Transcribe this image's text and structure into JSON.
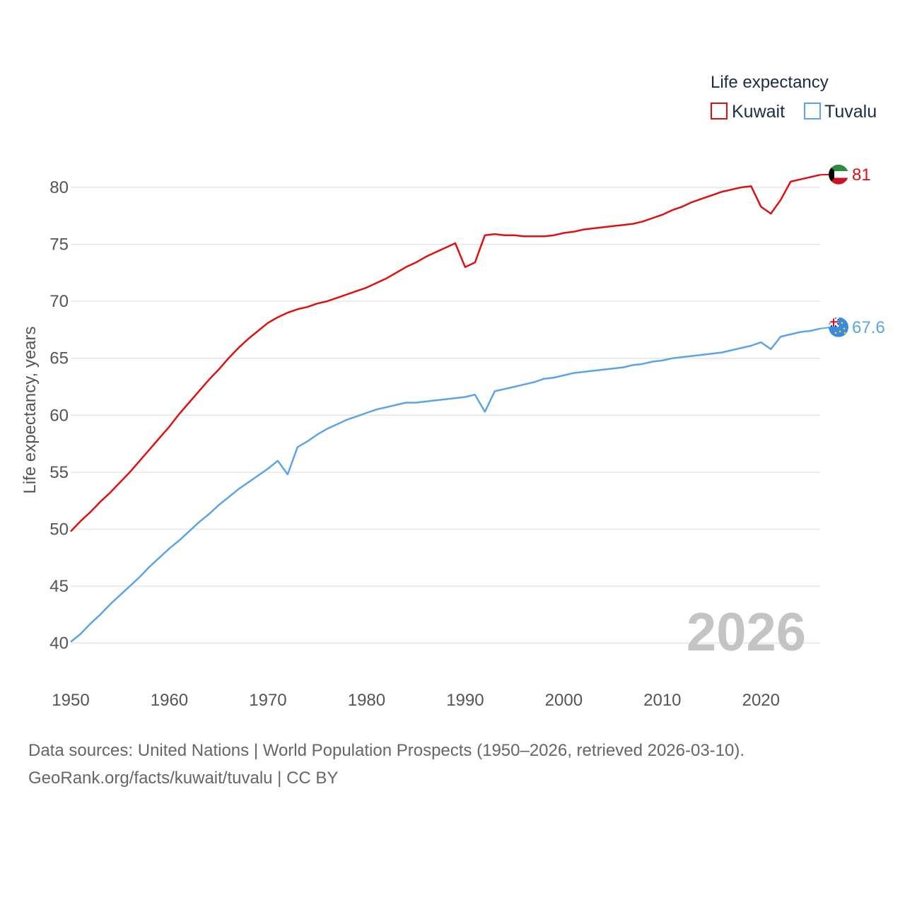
{
  "legend": {
    "title": "Life expectancy"
  },
  "year_label": "2026",
  "source": {
    "line1": "Data sources: United Nations | World Population Prospects (1950–2026, retrieved 2026-03-10).",
    "line2": "GeoRank.org/facts/kuwait/tuvalu | CC BY"
  },
  "colors": {
    "kuwait": "#e01010",
    "tuvalu": "#5ca4e8",
    "grid": "#e6e6e6"
  },
  "chart_data": {
    "type": "line",
    "title": "",
    "xlabel": "",
    "ylabel": "Life expectancy, years",
    "xlim": [
      1950,
      2026
    ],
    "ylim": [
      40,
      82
    ],
    "yticks": [
      40,
      45,
      50,
      55,
      60,
      65,
      70,
      75,
      80
    ],
    "xticks": [
      1950,
      1960,
      1970,
      1980,
      1990,
      2000,
      2010,
      2020
    ],
    "grid": true,
    "legend_position": "top-right",
    "series": [
      {
        "name": "Kuwait",
        "color": "#e01010",
        "end_label": "81",
        "flag": "kuwait-flag",
        "x": [
          1950,
          1951,
          1952,
          1953,
          1954,
          1955,
          1956,
          1957,
          1958,
          1959,
          1960,
          1961,
          1962,
          1963,
          1964,
          1965,
          1966,
          1967,
          1968,
          1969,
          1970,
          1971,
          1972,
          1973,
          1974,
          1975,
          1976,
          1977,
          1978,
          1979,
          1980,
          1981,
          1982,
          1983,
          1984,
          1985,
          1986,
          1987,
          1988,
          1989,
          1990,
          1991,
          1992,
          1993,
          1994,
          1995,
          1996,
          1997,
          1998,
          1999,
          2000,
          2001,
          2002,
          2003,
          2004,
          2005,
          2006,
          2007,
          2008,
          2009,
          2010,
          2011,
          2012,
          2013,
          2014,
          2015,
          2016,
          2017,
          2018,
          2019,
          2020,
          2021,
          2022,
          2023,
          2024,
          2025,
          2026
        ],
        "values": [
          49.8,
          50.7,
          51.5,
          52.4,
          53.2,
          54.1,
          55.0,
          56.0,
          57.0,
          58.0,
          59.0,
          60.1,
          61.1,
          62.1,
          63.1,
          64.0,
          65.0,
          65.9,
          66.7,
          67.4,
          68.1,
          68.6,
          69.0,
          69.3,
          69.5,
          69.8,
          70.0,
          70.3,
          70.6,
          70.9,
          71.2,
          71.6,
          72.0,
          72.5,
          73.0,
          73.4,
          73.9,
          74.3,
          74.7,
          75.1,
          73.0,
          73.4,
          75.8,
          75.9,
          75.8,
          75.8,
          75.7,
          75.7,
          75.7,
          75.8,
          76.0,
          76.1,
          76.3,
          76.4,
          76.5,
          76.6,
          76.7,
          76.8,
          77.0,
          77.3,
          77.6,
          78.0,
          78.3,
          78.7,
          79.0,
          79.3,
          79.6,
          79.8,
          80.0,
          80.1,
          78.3,
          77.7,
          78.9,
          80.5,
          80.7,
          80.9,
          81.1
        ]
      },
      {
        "name": "Tuvalu",
        "color": "#5ca4e8",
        "end_label": "67.6",
        "flag": "tuvalu-flag",
        "x": [
          1950,
          1951,
          1952,
          1953,
          1954,
          1955,
          1956,
          1957,
          1958,
          1959,
          1960,
          1961,
          1962,
          1963,
          1964,
          1965,
          1966,
          1967,
          1968,
          1969,
          1970,
          1971,
          1972,
          1973,
          1974,
          1975,
          1976,
          1977,
          1978,
          1979,
          1980,
          1981,
          1982,
          1983,
          1984,
          1985,
          1986,
          1987,
          1988,
          1989,
          1990,
          1991,
          1992,
          1993,
          1994,
          1995,
          1996,
          1997,
          1998,
          1999,
          2000,
          2001,
          2002,
          2003,
          2004,
          2005,
          2006,
          2007,
          2008,
          2009,
          2010,
          2011,
          2012,
          2013,
          2014,
          2015,
          2016,
          2017,
          2018,
          2019,
          2020,
          2021,
          2022,
          2023,
          2024,
          2025,
          2026
        ],
        "values": [
          40.1,
          40.8,
          41.7,
          42.5,
          43.4,
          44.2,
          45.0,
          45.8,
          46.7,
          47.5,
          48.3,
          49.0,
          49.8,
          50.6,
          51.3,
          52.1,
          52.8,
          53.5,
          54.1,
          54.7,
          55.3,
          56.0,
          54.8,
          57.2,
          57.7,
          58.3,
          58.8,
          59.2,
          59.6,
          59.9,
          60.2,
          60.5,
          60.7,
          60.9,
          61.1,
          61.1,
          61.2,
          61.3,
          61.4,
          61.5,
          61.6,
          61.8,
          60.3,
          62.1,
          62.3,
          62.5,
          62.7,
          62.9,
          63.2,
          63.3,
          63.5,
          63.7,
          63.8,
          63.9,
          64.0,
          64.1,
          64.2,
          64.4,
          64.5,
          64.7,
          64.8,
          65.0,
          65.1,
          65.2,
          65.3,
          65.4,
          65.5,
          65.7,
          65.9,
          66.1,
          66.4,
          65.8,
          66.9,
          67.1,
          67.3,
          67.4,
          67.6
        ]
      }
    ]
  }
}
